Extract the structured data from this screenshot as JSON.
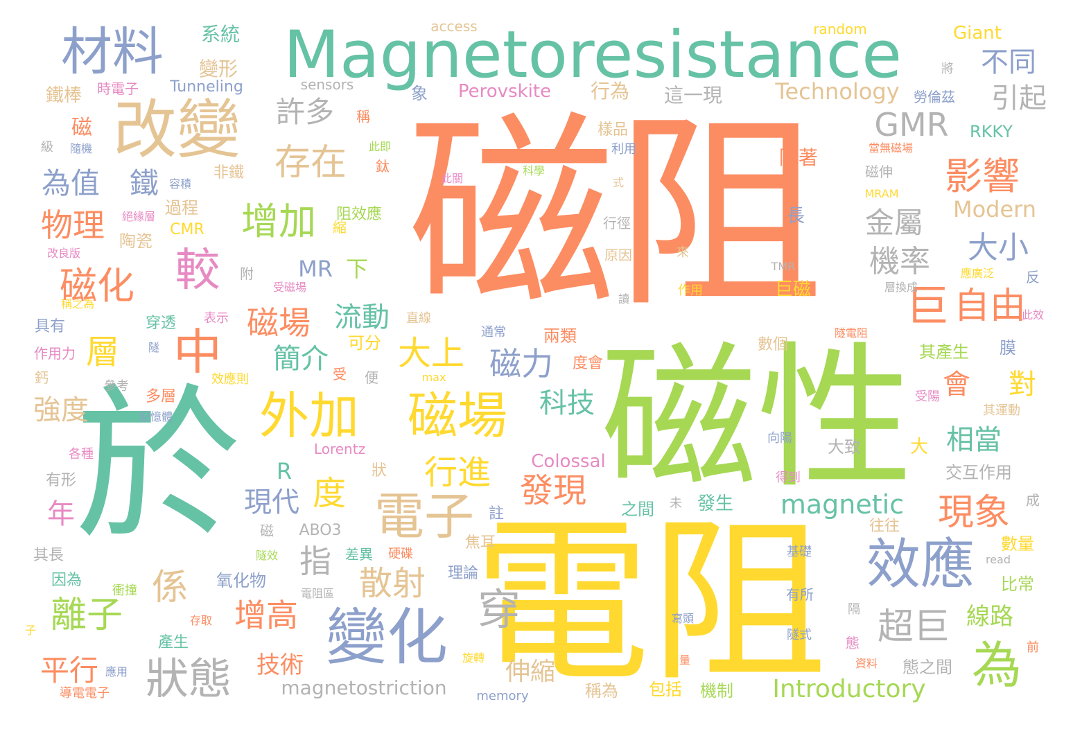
{
  "palette": {
    "orange": "#fc8d62",
    "green": "#66c2a5",
    "lime": "#a6d854",
    "yellow": "#ffd92f",
    "tan": "#e5c494",
    "blue": "#8da0cb",
    "gray": "#b3b3b3",
    "pink": "#e78ac3"
  },
  "words": [
    "磁阻",
    "電阻",
    "磁性",
    "於",
    "Magnetoresistance",
    "改變",
    "材料",
    "變化",
    "效應",
    "外加",
    "磁場",
    "電子",
    "中",
    "較",
    "磁化",
    "增加",
    "存在",
    "影響",
    "自由",
    "巨",
    "超巨",
    "為",
    "狀態",
    "穿",
    "現象",
    "層",
    "係",
    "平行",
    "離子",
    "增高",
    "散射",
    "行進",
    "度",
    "發現",
    "magnetic",
    "Introductory",
    "大上",
    "磁力",
    "科技",
    "流動",
    "磁場",
    "簡介",
    "指",
    "大小",
    "機率",
    "金屬",
    "GMR",
    "引起",
    "不同",
    "Technology",
    "許多",
    "物理",
    "為值",
    "鐵",
    "強度",
    "年",
    "技術",
    "伸縮",
    "magnetostriction",
    "現代",
    "相當",
    "會",
    "對",
    "線路",
    "Modern",
    "系統",
    "變形",
    "行為",
    "這一現",
    "Perovskite",
    "sensors",
    "Tunneling",
    "時電子",
    "鐵棒",
    "access",
    "random",
    "Giant",
    "RKKY",
    "勞倫茲",
    "將",
    "隨著",
    "長",
    "巨磁",
    "Colossal",
    "Lorentz",
    "ABO3",
    "R",
    "MR",
    "下",
    "CMR",
    "過程",
    "陶瓷",
    "改良版",
    "磁伸",
    "當無磁場",
    "MRAM",
    "TMR",
    "此效",
    "隧電阻",
    "其產生",
    "膜",
    "受陽",
    "其運動",
    "向陽",
    "交互作用",
    "成",
    "往往",
    "數量",
    "比常",
    "read",
    "基礎",
    "有所",
    "寫頭",
    "隧式",
    "隔",
    "態",
    "前",
    "資料",
    "態之間",
    "包括",
    "機制",
    "稱為",
    "memory",
    "導電電子",
    "應用",
    "旋轉",
    "量",
    "理論",
    "焦耳",
    "註",
    "之間",
    "未",
    "發生",
    "大致",
    "大",
    "狀",
    "得到",
    "可分",
    "受",
    "便",
    "max",
    "效應則",
    "參考",
    "多層",
    "記憶體",
    "各種",
    "有形",
    "其長",
    "因為",
    "衝撞",
    "存取",
    "電阻區",
    "差異",
    "硬碟",
    "氧化物",
    "磁",
    "隧效",
    "子",
    "產生",
    "鈣",
    "作用力",
    "具有",
    "稱之為",
    "表示",
    "穿透",
    "隧",
    "直線",
    "通常",
    "兩類",
    "數個",
    "度會",
    "樣品",
    "利用",
    "式",
    "行徑",
    "原因",
    "來",
    "作用",
    "讀",
    "應廣泛",
    "反",
    "層換成",
    "附",
    "受磁場",
    "非鐵",
    "阻效應",
    "縮",
    "絕緣層",
    "容積",
    "級",
    "隨機",
    "鈦",
    "此即",
    "科學",
    "此關",
    "稱",
    "象",
    "磁"
  ]
}
